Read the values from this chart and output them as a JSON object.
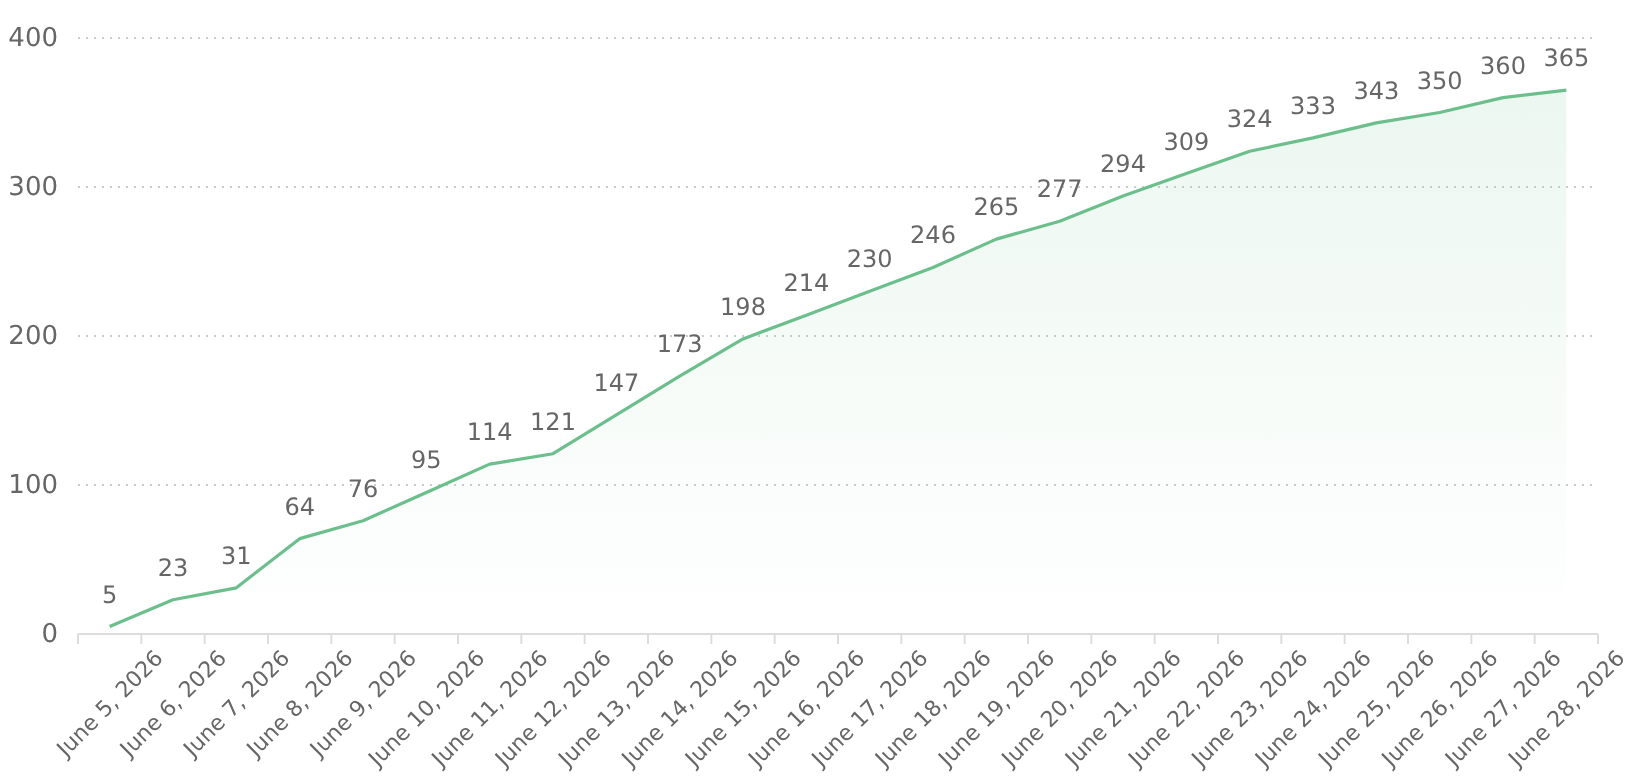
{
  "chart_data": {
    "type": "area",
    "categories": [
      "June 5, 2026",
      "June 6, 2026",
      "June 7, 2026",
      "June 8, 2026",
      "June 9, 2026",
      "June 10, 2026",
      "June 11, 2026",
      "June 12, 2026",
      "June 13, 2026",
      "June 14, 2026",
      "June 15, 2026",
      "June 16, 2026",
      "June 17, 2026",
      "June 18, 2026",
      "June 19, 2026",
      "June 20, 2026",
      "June 21, 2026",
      "June 22, 2026",
      "June 23, 2026",
      "June 24, 2026",
      "June 25, 2026",
      "June 26, 2026",
      "June 27, 2026",
      "June 28, 2026"
    ],
    "series": [
      {
        "color": "#6cbf8c",
        "values": [
          5,
          23,
          31,
          64,
          76,
          95,
          114,
          121,
          147,
          173,
          198,
          214,
          230,
          246,
          265,
          277,
          294,
          309,
          324,
          333,
          343,
          350,
          360,
          365
        ]
      }
    ],
    "ylim": [
      0,
      400
    ],
    "yticks": [
      0,
      100,
      200,
      300,
      400
    ],
    "grid": "y",
    "data_labels": true
  }
}
